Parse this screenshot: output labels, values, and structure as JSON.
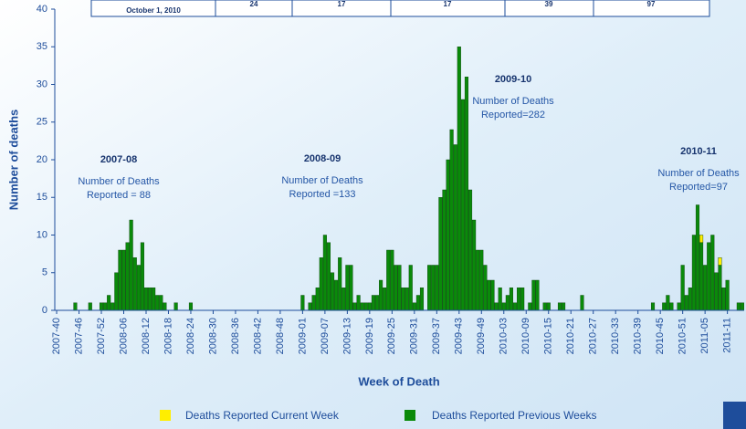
{
  "table_fragment": [
    "October 1, 2010",
    "24",
    "17",
    "17",
    "39",
    "97"
  ],
  "chart_data": {
    "type": "stacked_bar",
    "y_label": "Number of deaths",
    "x_label": "Week of Death",
    "ylim": [
      0,
      40
    ],
    "yticks": [
      0,
      5,
      10,
      15,
      20,
      25,
      30,
      35,
      40
    ],
    "annotations": [
      {
        "title": "2007-08",
        "text": [
          "Number of Deaths",
          "Reported = 88"
        ]
      },
      {
        "title": "2008-09",
        "text": [
          "Number of Deaths",
          "Reported =133"
        ]
      },
      {
        "title": "2009-10",
        "text": [
          "Number of Deaths",
          "Reported=282"
        ]
      },
      {
        "title": "2010-11",
        "text": [
          "Number of Deaths",
          "Reported=97"
        ]
      }
    ],
    "categories": [
      "2007-40",
      null,
      null,
      null,
      null,
      null,
      "2007-46",
      null,
      null,
      null,
      null,
      null,
      "2007-52",
      null,
      null,
      null,
      null,
      null,
      "2008-06",
      null,
      null,
      null,
      null,
      null,
      "2008-12",
      null,
      null,
      null,
      null,
      null,
      "2008-18",
      null,
      null,
      null,
      null,
      null,
      "2008-24",
      null,
      null,
      null,
      null,
      null,
      "2008-30",
      null,
      null,
      null,
      null,
      null,
      "2008-36",
      null,
      null,
      null,
      null,
      null,
      "2008-42",
      null,
      null,
      null,
      null,
      null,
      "2008-48",
      null,
      null,
      null,
      null,
      null,
      "2009-01",
      null,
      null,
      null,
      null,
      null,
      "2009-07",
      null,
      null,
      null,
      null,
      null,
      "2009-13",
      null,
      null,
      null,
      null,
      null,
      "2009-19",
      null,
      null,
      null,
      null,
      null,
      "2009-25",
      null,
      null,
      null,
      null,
      null,
      "2009-31",
      null,
      null,
      null,
      null,
      null,
      "2009-37",
      null,
      null,
      null,
      null,
      null,
      "2009-43",
      null,
      null,
      null,
      null,
      null,
      "2009-49",
      null,
      null,
      null,
      null,
      null,
      "2010-03",
      null,
      null,
      null,
      null,
      null,
      "2010-09",
      null,
      null,
      null,
      null,
      null,
      "2010-15",
      null,
      null,
      null,
      null,
      null,
      "2010-21",
      null,
      null,
      null,
      null,
      null,
      "2010-27",
      null,
      null,
      null,
      null,
      null,
      "2010-33",
      null,
      null,
      null,
      null,
      null,
      "2010-39",
      null,
      null,
      null,
      null,
      null,
      "2010-45",
      null,
      null,
      null,
      null,
      null,
      "2010-51",
      null,
      null,
      null,
      null,
      null,
      "2011-05",
      null,
      null,
      null,
      null,
      null,
      "2011-11",
      null,
      null,
      null,
      null
    ],
    "series": [
      {
        "name": "Deaths Reported Previous Weeks",
        "color": "#0a8a0a",
        "values": [
          0,
          0,
          0,
          0,
          0,
          1,
          0,
          0,
          0,
          1,
          0,
          0,
          1,
          1,
          2,
          1,
          5,
          8,
          8,
          9,
          12,
          7,
          6,
          9,
          3,
          3,
          3,
          2,
          2,
          1,
          0,
          0,
          1,
          0,
          0,
          0,
          1,
          0,
          0,
          0,
          0,
          0,
          0,
          0,
          0,
          0,
          0,
          0,
          0,
          0,
          0,
          0,
          0,
          0,
          0,
          0,
          0,
          0,
          0,
          0,
          0,
          0,
          0,
          0,
          0,
          0,
          2,
          0,
          1,
          2,
          3,
          7,
          10,
          9,
          5,
          4,
          7,
          3,
          6,
          6,
          1,
          2,
          1,
          1,
          1,
          2,
          2,
          4,
          3,
          8,
          8,
          6,
          6,
          3,
          3,
          6,
          1,
          2,
          3,
          0,
          6,
          6,
          6,
          15,
          16,
          20,
          24,
          22,
          35,
          28,
          31,
          16,
          12,
          8,
          8,
          6,
          4,
          4,
          1,
          3,
          1,
          2,
          3,
          1,
          3,
          3,
          0,
          1,
          4,
          4,
          0,
          1,
          1,
          0,
          0,
          1,
          1,
          0,
          0,
          0,
          0,
          2,
          0,
          0,
          0,
          0,
          0,
          0,
          0,
          0,
          0,
          0,
          0,
          0,
          0,
          0,
          0,
          0,
          0,
          0,
          1,
          0,
          0,
          1,
          2,
          1,
          0,
          1,
          6,
          2,
          3,
          10,
          14,
          9,
          6,
          9,
          10,
          5,
          6,
          3,
          4,
          0,
          0,
          1,
          1
        ]
      },
      {
        "name": "Deaths Reported Current Week",
        "color": "#ffee00",
        "values": [
          0,
          0,
          0,
          0,
          0,
          0,
          0,
          0,
          0,
          0,
          0,
          0,
          0,
          0,
          0,
          0,
          0,
          0,
          0,
          0,
          0,
          0,
          0,
          0,
          0,
          0,
          0,
          0,
          0,
          0,
          0,
          0,
          0,
          0,
          0,
          0,
          0,
          0,
          0,
          0,
          0,
          0,
          0,
          0,
          0,
          0,
          0,
          0,
          0,
          0,
          0,
          0,
          0,
          0,
          0,
          0,
          0,
          0,
          0,
          0,
          0,
          0,
          0,
          0,
          0,
          0,
          0,
          0,
          0,
          0,
          0,
          0,
          0,
          0,
          0,
          0,
          0,
          0,
          0,
          0,
          0,
          0,
          0,
          0,
          0,
          0,
          0,
          0,
          0,
          0,
          0,
          0,
          0,
          0,
          0,
          0,
          0,
          0,
          0,
          0,
          0,
          0,
          0,
          0,
          0,
          0,
          0,
          0,
          0,
          0,
          0,
          0,
          0,
          0,
          0,
          0,
          0,
          0,
          0,
          0,
          0,
          0,
          0,
          0,
          0,
          0,
          0,
          0,
          0,
          0,
          0,
          0,
          0,
          0,
          0,
          0,
          0,
          0,
          0,
          0,
          0,
          0,
          0,
          0,
          0,
          0,
          0,
          0,
          0,
          0,
          0,
          0,
          0,
          0,
          0,
          0,
          0,
          0,
          0,
          0,
          0,
          0,
          0,
          0,
          0,
          0,
          0,
          0,
          0,
          0,
          0,
          0,
          0,
          1,
          0,
          0,
          0,
          0,
          1,
          0,
          0,
          0,
          0,
          0,
          0
        ]
      }
    ],
    "legend": "bottom"
  }
}
